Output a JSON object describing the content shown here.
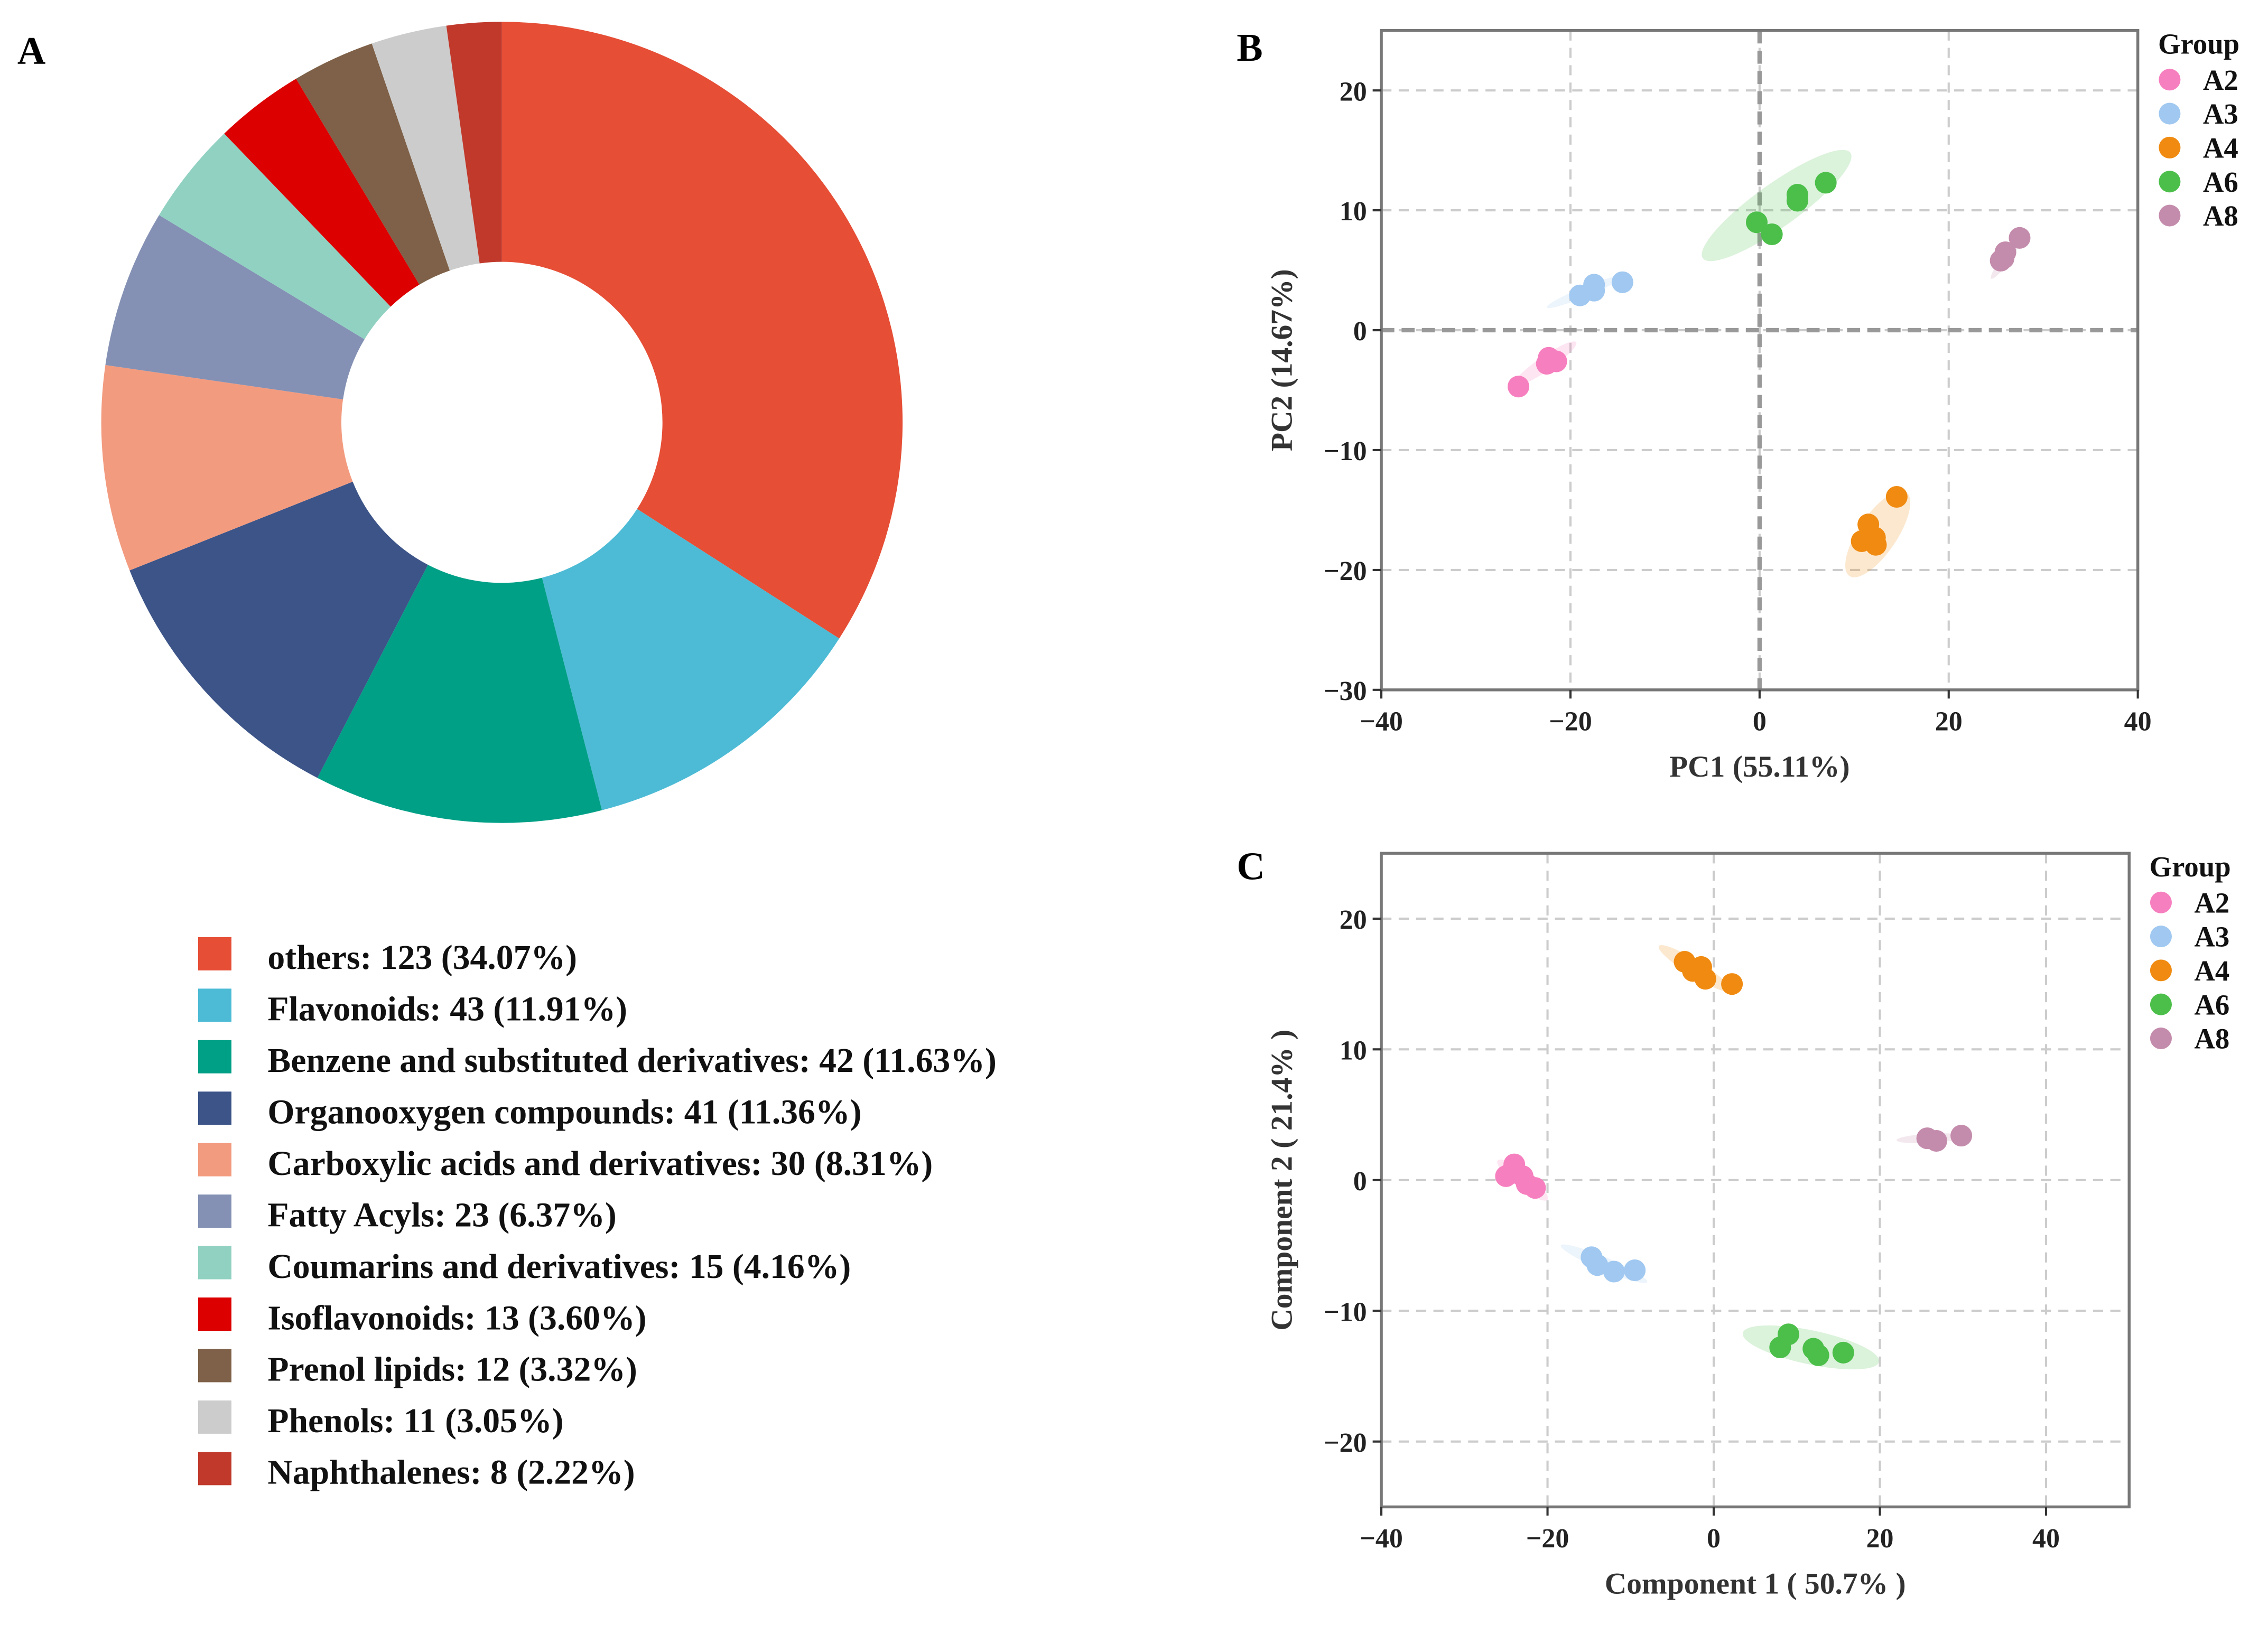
{
  "chart_data": [
    {
      "panel": "A",
      "type": "pie",
      "donut": true,
      "slices": [
        {
          "label": "others",
          "count": 123,
          "percent": 34.07,
          "color": "#E64E36",
          "legend": "others: 123 (34.07%)"
        },
        {
          "label": "Flavonoids",
          "count": 43,
          "percent": 11.91,
          "color": "#4DBBD5",
          "legend": "Flavonoids: 43 (11.91%)"
        },
        {
          "label": "Benzene and substituted derivatives",
          "count": 42,
          "percent": 11.63,
          "color": "#00A087",
          "legend": "Benzene and substituted derivatives: 42 (11.63%)"
        },
        {
          "label": "Organooxygen compounds",
          "count": 41,
          "percent": 11.36,
          "color": "#3C5488",
          "legend": "Organooxygen compounds: 41 (11.36%)"
        },
        {
          "label": "Carboxylic acids and derivatives",
          "count": 30,
          "percent": 8.31,
          "color": "#F39B7F",
          "legend": "Carboxylic acids and derivatives: 30 (8.31%)"
        },
        {
          "label": "Fatty Acyls",
          "count": 23,
          "percent": 6.37,
          "color": "#8491B4",
          "legend": "Fatty Acyls: 23 (6.37%)"
        },
        {
          "label": "Coumarins and derivatives",
          "count": 15,
          "percent": 4.16,
          "color": "#91D1C2",
          "legend": "Coumarins and derivatives: 15 (4.16%)"
        },
        {
          "label": "Isoflavonoids",
          "count": 13,
          "percent": 3.6,
          "color": "#DC0000",
          "legend": "Isoflavonoids: 13 (3.60%)"
        },
        {
          "label": "Prenol lipids",
          "count": 12,
          "percent": 3.32,
          "color": "#7E6148",
          "legend": "Prenol lipids: 12 (3.32%)"
        },
        {
          "label": "Phenols",
          "count": 11,
          "percent": 3.05,
          "color": "#CCCCCC",
          "legend": "Phenols: 11 (3.05%)"
        },
        {
          "label": "Naphthalenes",
          "count": 8,
          "percent": 2.22,
          "color": "#C0392B",
          "legend": "Naphthalenes: 8 (2.22%)"
        }
      ]
    },
    {
      "panel": "B",
      "type": "scatter",
      "xlabel": "PC1  (55.11%)",
      "ylabel": "PC2  (14.67%)",
      "xlim": [
        -40,
        40
      ],
      "ylim": [
        -30,
        25
      ],
      "xticks": [
        -40,
        -20,
        0,
        20,
        40
      ],
      "yticks": [
        -30,
        -20,
        -10,
        0,
        10,
        20
      ],
      "zero_lines": true,
      "legend_title": "Group",
      "groups": [
        {
          "name": "A2",
          "color": "#F67FBF",
          "points": [
            [
              -25.5,
              -4.7
            ],
            [
              -22.5,
              -2.8
            ],
            [
              -22,
              -2.5
            ],
            [
              -21.5,
              -2.6
            ],
            [
              -22.3,
              -2.3
            ]
          ],
          "ellipse": {
            "c": [
              -22.7,
              -2.8
            ],
            "v": [
              3.3,
              1.8
            ],
            "b": 0.6
          }
        },
        {
          "name": "A3",
          "color": "#A0C8F0",
          "points": [
            [
              -19,
              2.9
            ],
            [
              -17.5,
              3.3
            ],
            [
              -17.5,
              3.8
            ],
            [
              -14.5,
              4
            ]
          ],
          "ellipse": {
            "c": [
              -18.5,
              3.2
            ],
            "v": [
              4,
              1.3
            ],
            "b": 0.4
          }
        },
        {
          "name": "A4",
          "color": "#F08A10",
          "points": [
            [
              14.5,
              -13.9
            ],
            [
              11.5,
              -16.2
            ],
            [
              10.8,
              -17.6
            ],
            [
              12.3,
              -17.9
            ],
            [
              12.2,
              -17.3
            ]
          ],
          "ellipse": {
            "c": [
              12.5,
              -17
            ],
            "v": [
              3,
              3.5
            ],
            "b": 1.6
          }
        },
        {
          "name": "A6",
          "color": "#4CBF4A",
          "points": [
            [
              -0.3,
              9
            ],
            [
              1.3,
              8
            ],
            [
              4,
              10.8
            ],
            [
              4,
              11.3
            ],
            [
              7,
              12.3
            ]
          ],
          "ellipse": {
            "c": [
              1.8,
              10.4
            ],
            "v": [
              7.8,
              4.4
            ],
            "b": 1.8
          }
        },
        {
          "name": "A8",
          "color": "#C48CAC",
          "points": [
            [
              25.5,
              5.8
            ],
            [
              26,
              6.5
            ],
            [
              27.5,
              7.7
            ],
            [
              25.8,
              6
            ]
          ],
          "ellipse": {
            "c": [
              26,
              5.9
            ],
            "v": [
              1.5,
              1.6
            ],
            "b": 0.3
          }
        }
      ]
    },
    {
      "panel": "C",
      "type": "scatter",
      "xlabel": "Component  1  (  50.7%  )",
      "ylabel": "Component  2  (  21.4%  )",
      "xlim": [
        -40,
        50
      ],
      "ylim": [
        -25,
        25
      ],
      "xticks": [
        -40,
        -20,
        0,
        20,
        40
      ],
      "yticks": [
        -20,
        -10,
        0,
        10,
        20
      ],
      "zero_lines": false,
      "legend_title": "Group",
      "groups": [
        {
          "name": "A2",
          "color": "#F67FBF",
          "points": [
            [
              -25,
              0.3
            ],
            [
              -24,
              1.2
            ],
            [
              -23,
              0.3
            ],
            [
              -22.5,
              -0.3
            ],
            [
              -21.5,
              -0.6
            ],
            [
              -24.5,
              0.5
            ]
          ],
          "ellipse": {
            "c": [
              -23,
              0
            ],
            "v": [
              3,
              -1.5
            ],
            "b": 0.6
          }
        },
        {
          "name": "A3",
          "color": "#A0C8F0",
          "points": [
            [
              -14.7,
              -5.9
            ],
            [
              -14,
              -6.5
            ],
            [
              -12,
              -7
            ],
            [
              -9.5,
              -6.9
            ]
          ],
          "ellipse": {
            "c": [
              -13.2,
              -6.4
            ],
            "v": [
              5.2,
              -1.4
            ],
            "b": 0.5
          }
        },
        {
          "name": "A4",
          "color": "#F08A10",
          "points": [
            [
              -3.5,
              16.7
            ],
            [
              -2.5,
              16
            ],
            [
              -1.5,
              16.3
            ],
            [
              -1,
              15.4
            ],
            [
              2.2,
              15
            ]
          ],
          "ellipse": {
            "c": [
              -2.3,
              16.2
            ],
            "v": [
              4.3,
              -1.7
            ],
            "b": 0.6
          }
        },
        {
          "name": "A6",
          "color": "#4CBF4A",
          "points": [
            [
              8,
              -12.8
            ],
            [
              9,
              -11.8
            ],
            [
              12,
              -12.9
            ],
            [
              12.6,
              -13.4
            ],
            [
              15.6,
              -13.2
            ]
          ],
          "ellipse": {
            "c": [
              11.7,
              -12.8
            ],
            "v": [
              8.2,
              -1.1
            ],
            "b": 1.3
          }
        },
        {
          "name": "A8",
          "color": "#C48CAC",
          "points": [
            [
              25.7,
              3.2
            ],
            [
              26.8,
              3
            ],
            [
              29.8,
              3.4
            ]
          ],
          "ellipse": {
            "c": [
              26,
              3.2
            ],
            "v": [
              4,
              0.15
            ],
            "b": 0.35
          }
        }
      ]
    }
  ]
}
